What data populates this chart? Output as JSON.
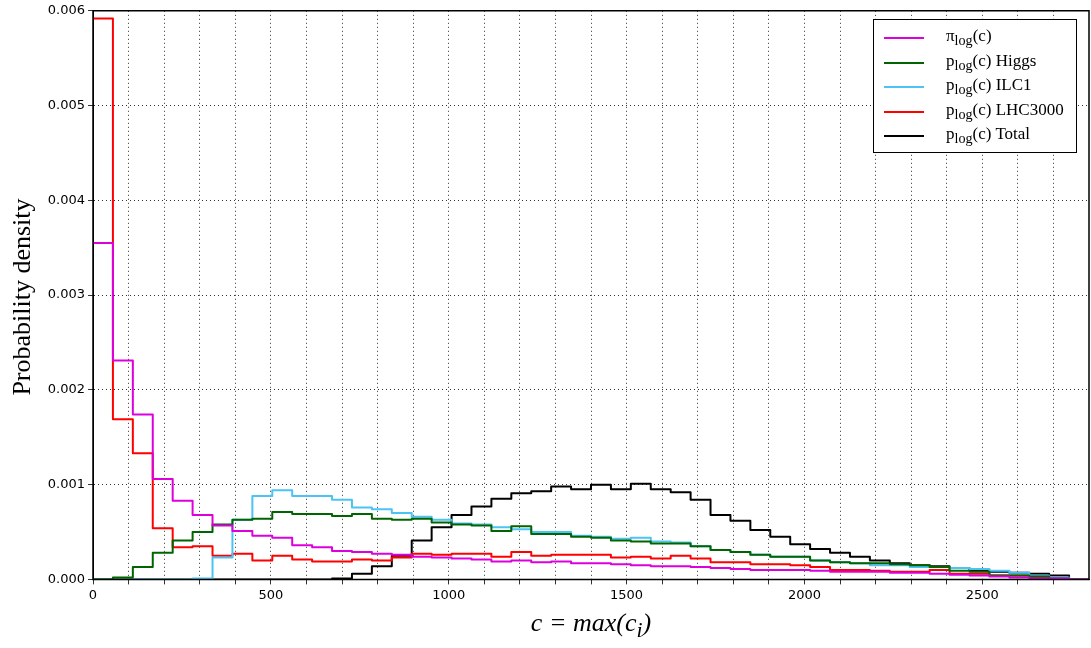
{
  "chart_data": {
    "type": "histogram",
    "xlabel": "c = max(c$_{i}$)",
    "ylabel": "Probability density",
    "bins": [
      0,
      56,
      112,
      168,
      224,
      280,
      336,
      392,
      448,
      504,
      560,
      616,
      672,
      728,
      784,
      840,
      896,
      952,
      1008,
      1064,
      1120,
      1176,
      1232,
      1288,
      1344,
      1400,
      1456,
      1512,
      1568,
      1624,
      1680,
      1736,
      1792,
      1848,
      1904,
      1960,
      2016,
      2072,
      2128,
      2184,
      2240,
      2296,
      2352,
      2408,
      2464,
      2520,
      2576,
      2632,
      2688,
      2744,
      2800
    ],
    "series": [
      {
        "name": "π$_{log}$(c)",
        "color": "#dd00dd",
        "values": [
          0.00355,
          0.00231,
          0.00174,
          0.00106,
          0.00083,
          0.00068,
          0.00057,
          0.00051,
          0.00046,
          0.00044,
          0.00036,
          0.00034,
          0.0003,
          0.00029,
          0.00027,
          0.00026,
          0.00024,
          0.00023,
          0.00022,
          0.00021,
          0.00019,
          0.0002,
          0.00018,
          0.00019,
          0.00017,
          0.00017,
          0.00016,
          0.00015,
          0.00014,
          0.00014,
          0.00013,
          0.00012,
          0.00011,
          0.0001,
          0.0001,
          0.0001,
          9e-05,
          8e-05,
          8e-05,
          8e-05,
          7e-05,
          7e-05,
          6e-05,
          5e-05,
          4e-05,
          3e-05,
          2e-05,
          1e-05,
          1e-05,
          0
        ]
      },
      {
        "name": "p$_{log}$(c) Higgs",
        "color": "#006400",
        "values": [
          0,
          2e-05,
          0.00013,
          0.00028,
          0.00041,
          0.0005,
          0.00058,
          0.00063,
          0.00064,
          0.00071,
          0.00069,
          0.00069,
          0.00067,
          0.00069,
          0.00064,
          0.00063,
          0.00064,
          0.0006,
          0.00058,
          0.00057,
          0.00051,
          0.00056,
          0.00048,
          0.00048,
          0.00045,
          0.00044,
          0.00041,
          0.0004,
          0.00038,
          0.00038,
          0.00035,
          0.00031,
          0.00029,
          0.00026,
          0.00024,
          0.00024,
          0.0002,
          0.00018,
          0.00017,
          0.00017,
          0.00016,
          0.00015,
          0.00013,
          9e-05,
          8e-05,
          4e-05,
          4e-05,
          3e-05,
          1e-05,
          0
        ]
      },
      {
        "name": "p$_{log}$(c) ILC1",
        "color": "#4cc3f5",
        "values": [
          0,
          0,
          0,
          0,
          0,
          1e-05,
          0.00023,
          0.00063,
          0.00088,
          0.00094,
          0.00088,
          0.00088,
          0.00084,
          0.00076,
          0.00074,
          0.0007,
          0.00066,
          0.00063,
          0.00059,
          0.00058,
          0.00055,
          0.00053,
          0.0005,
          0.0005,
          0.00046,
          0.00045,
          0.00043,
          0.00044,
          0.0004,
          0.00039,
          0.00035,
          0.00031,
          0.00029,
          0.00026,
          0.00024,
          0.00024,
          0.0002,
          0.00018,
          0.00017,
          0.00015,
          0.00015,
          0.00013,
          0.00013,
          0.00012,
          0.00011,
          9e-05,
          7e-05,
          4e-05,
          2e-05,
          0
        ]
      },
      {
        "name": "p$_{log}$(c) LHC3000",
        "color": "#ff0000",
        "values": [
          0.00592,
          0.00169,
          0.00133,
          0.00054,
          0.00034,
          0.00035,
          0.00025,
          0.00027,
          0.0002,
          0.00025,
          0.00021,
          0.00019,
          0.00019,
          0.00021,
          0.0002,
          0.00023,
          0.00027,
          0.00026,
          0.00027,
          0.00027,
          0.00024,
          0.00029,
          0.00025,
          0.00026,
          0.00026,
          0.00026,
          0.00023,
          0.00024,
          0.00022,
          0.00025,
          0.00022,
          0.00018,
          0.00018,
          0.00016,
          0.00016,
          0.00015,
          0.00013,
          0.0001,
          0.0001,
          9e-05,
          8e-05,
          8e-05,
          0.0001,
          6e-05,
          6e-05,
          4e-05,
          4e-05,
          2e-05,
          1e-05,
          0
        ]
      },
      {
        "name": "p$_{log}$(c) Total",
        "color": "#000000",
        "values": [
          0,
          0,
          0,
          0,
          0,
          0,
          0,
          0,
          0,
          0,
          0,
          0,
          1e-05,
          6e-05,
          0.00014,
          0.00025,
          0.00041,
          0.00055,
          0.00068,
          0.00077,
          0.00085,
          0.00091,
          0.00093,
          0.00098,
          0.00095,
          0.001,
          0.00095,
          0.00101,
          0.00095,
          0.00092,
          0.00084,
          0.00068,
          0.00062,
          0.00052,
          0.00045,
          0.00037,
          0.00032,
          0.00028,
          0.00024,
          0.0002,
          0.00017,
          0.00015,
          0.00014,
          0.00012,
          0.0001,
          8e-05,
          7e-05,
          6e-05,
          4e-05,
          0
        ]
      }
    ],
    "xlim": [
      0,
      2800
    ],
    "xticks": [
      0,
      {
        "value": 100,
        "label": null
      },
      {
        "value": 200,
        "label": null
      },
      {
        "value": 300,
        "label": null
      },
      {
        "value": 400,
        "label": null
      },
      500,
      {
        "value": 600,
        "label": null
      },
      {
        "value": 700,
        "label": null
      },
      {
        "value": 800,
        "label": null
      },
      {
        "value": 900,
        "label": null
      },
      1000,
      {
        "value": 1100,
        "label": null
      },
      {
        "value": 1200,
        "label": null
      },
      {
        "value": 1300,
        "label": null
      },
      {
        "value": 1400,
        "label": null
      },
      1500,
      {
        "value": 1600,
        "label": null
      },
      {
        "value": 1700,
        "label": null
      },
      {
        "value": 1800,
        "label": null
      },
      {
        "value": 1900,
        "label": null
      },
      2000,
      {
        "value": 2100,
        "label": null
      },
      {
        "value": 2200,
        "label": null
      },
      {
        "value": 2300,
        "label": null
      },
      {
        "value": 2400,
        "label": null
      },
      2500,
      {
        "value": 2600,
        "label": null
      },
      {
        "value": 2700,
        "label": null
      }
    ],
    "ylim": [
      0,
      0.006
    ],
    "yticks": [
      {
        "value": 0,
        "label": "0.000"
      },
      {
        "value": 0.001,
        "label": "0.001"
      },
      {
        "value": 0.002,
        "label": "0.002"
      },
      {
        "value": 0.003,
        "label": "0.003"
      },
      {
        "value": 0.004,
        "label": "0.004"
      },
      {
        "value": 0.005,
        "label": "0.005"
      },
      {
        "value": 0.006,
        "label": "0.006"
      }
    ],
    "grid": true,
    "legend": "top right"
  }
}
